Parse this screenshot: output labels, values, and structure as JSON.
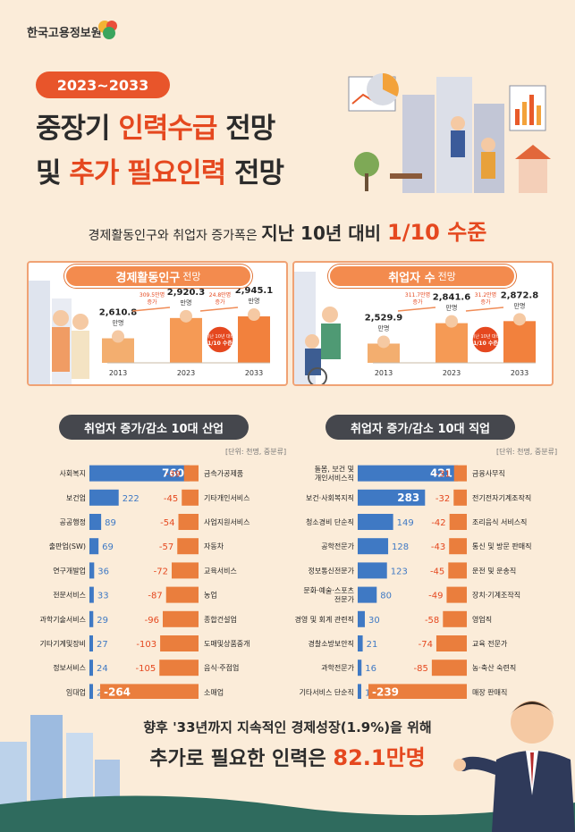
{
  "brand": {
    "logo_text": "한국고용정보원",
    "accent": "#e8552b",
    "orange": "#f38b4e",
    "blue": "#3f79c4"
  },
  "header": {
    "badge": "2023~2033",
    "title_line1_pre": "중장기 ",
    "title_line1_hl": "인력수급",
    "title_line1_post": " 전망",
    "title_line2_pre": "및 ",
    "title_line2_hl": "추가 필요인력",
    "title_line2_post": " 전망"
  },
  "subhead": {
    "lead": "경제활동인구와 취업자 증가폭은 ",
    "strong": "지난 10년 대비 ",
    "hl": "1/10 수준"
  },
  "panels": [
    {
      "title": "경제활동인구",
      "title_suffix": "전망",
      "years": [
        "2013",
        "2023",
        "2033"
      ],
      "values": [
        2610.8,
        2920.3,
        2945.1
      ],
      "value_labels": [
        "2,610.8",
        "2,920.3",
        "2,945.1"
      ],
      "unit": "만명",
      "increase_labels": [
        [
          "309.5만명",
          "증가"
        ],
        [
          "24.8만명",
          "증가"
        ]
      ],
      "stamp_lines": [
        "지난 10년 대비",
        "1/10 수준"
      ]
    },
    {
      "title": "취업자 수",
      "title_suffix": "전망",
      "years": [
        "2013",
        "2023",
        "2033"
      ],
      "values": [
        2529.9,
        2841.6,
        2872.8
      ],
      "value_labels": [
        "2,529.9",
        "2,841.6",
        "2,872.8"
      ],
      "unit": "만명",
      "increase_labels": [
        [
          "311.7만명",
          "증가"
        ],
        [
          "31.2만명",
          "증가"
        ]
      ],
      "stamp_lines": [
        "지난 10년 대비",
        "1/10 수준"
      ]
    }
  ],
  "chart_data": [
    {
      "type": "bar",
      "title": "취업자 증가/감소 10대 산업",
      "unit_note": "[단위: 천명, 중분류]",
      "increase": {
        "categories": [
          "사회복지",
          "보건업",
          "공공행정",
          "출판업(SW)",
          "연구개발업",
          "전문서비스",
          "과학기술서비스",
          "기타기계및장비",
          "정보서비스",
          "임대업"
        ],
        "values": [
          760,
          222,
          89,
          69,
          36,
          33,
          29,
          27,
          24,
          24
        ]
      },
      "decrease": {
        "categories": [
          "금속가공제품",
          "기타개인서비스",
          "사업지원서비스",
          "자동차",
          "교육서비스",
          "농업",
          "종합건설업",
          "도매및상품중개",
          "음식·주점업",
          "소매업"
        ],
        "values": [
          -39,
          -45,
          -54,
          -57,
          -72,
          -87,
          -96,
          -103,
          -105,
          -264
        ]
      }
    },
    {
      "type": "bar",
      "title": "취업자 증가/감소 10대 직업",
      "unit_note": "[단위: 천명, 중분류]",
      "increase": {
        "categories": [
          [
            "돌봄, 보건 및",
            "개인서비스직"
          ],
          [
            "보건·사회복지직"
          ],
          [
            "청소경비 단순직"
          ],
          [
            "공학전문가"
          ],
          [
            "정보통신전문가"
          ],
          [
            "문화·예술·스포츠",
            "전문가"
          ],
          [
            "경영 및 회계 관련직"
          ],
          [
            "경찰소방보안직"
          ],
          [
            "과학전문가"
          ],
          [
            "기타서비스 단순직"
          ]
        ],
        "values": [
          421,
          283,
          149,
          128,
          123,
          80,
          30,
          21,
          16,
          12
        ]
      },
      "decrease": {
        "categories": [
          "금융사무직",
          "전기전자기계조작직",
          "조리음식 서비스직",
          "통신 및 방문 판매직",
          "운전 및 운송직",
          "장치·기계조작직",
          "영업직",
          "교육 전문가",
          "농·축산 숙련직",
          "매장 판매직"
        ],
        "values": [
          -31,
          -32,
          -42,
          -43,
          -45,
          -49,
          -58,
          -74,
          -85,
          -239
        ]
      }
    }
  ],
  "footer": {
    "line1": "향후 '33년까지 지속적인 경제성장(1.9%)을 위해",
    "line2_pre": "추가로 필요한 인력은 ",
    "line2_hl": "82.1만명"
  }
}
